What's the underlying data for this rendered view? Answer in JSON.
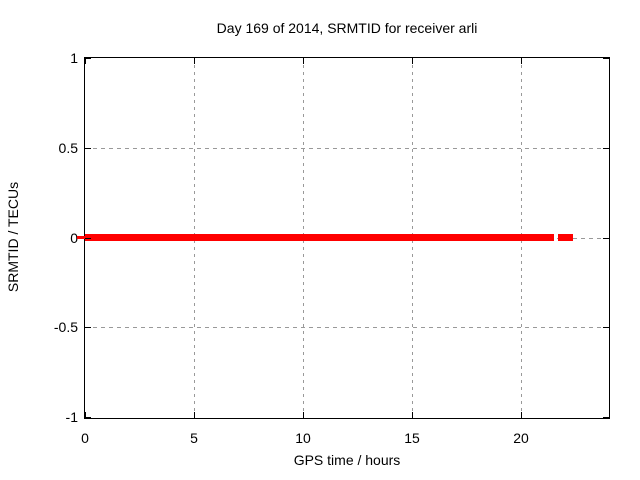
{
  "chart_data": {
    "type": "line",
    "title": "Day 169 of 2014, SRMTID for receiver arli",
    "xlabel": "GPS time / hours",
    "ylabel": "SRMTID / TECUs",
    "xlim": [
      0,
      24
    ],
    "ylim": [
      -1,
      1
    ],
    "x_ticks": [
      {
        "value": 0,
        "label": "0"
      },
      {
        "value": 5,
        "label": "5"
      },
      {
        "value": 10,
        "label": "10"
      },
      {
        "value": 15,
        "label": "15"
      },
      {
        "value": 20,
        "label": "20"
      }
    ],
    "y_ticks": [
      {
        "value": 1,
        "label": "1"
      },
      {
        "value": 0.5,
        "label": "0.5"
      },
      {
        "value": 0,
        "label": "0"
      },
      {
        "value": -0.5,
        "label": "-0.5"
      },
      {
        "value": -1,
        "label": "-1"
      }
    ],
    "grid": true,
    "legend": "none",
    "series": [
      {
        "name": "SRMTID",
        "style": "thick-points-line",
        "color": "#ff0000",
        "y": 0,
        "segments": [
          {
            "t_start": 0.0,
            "t_end": 21.5
          },
          {
            "t_start": 21.7,
            "t_end": 22.4
          }
        ]
      }
    ],
    "colors": {
      "data": "#ff0000",
      "grid": "#999999",
      "border": "#000000",
      "text": "#000000",
      "background": "#ffffff"
    }
  }
}
